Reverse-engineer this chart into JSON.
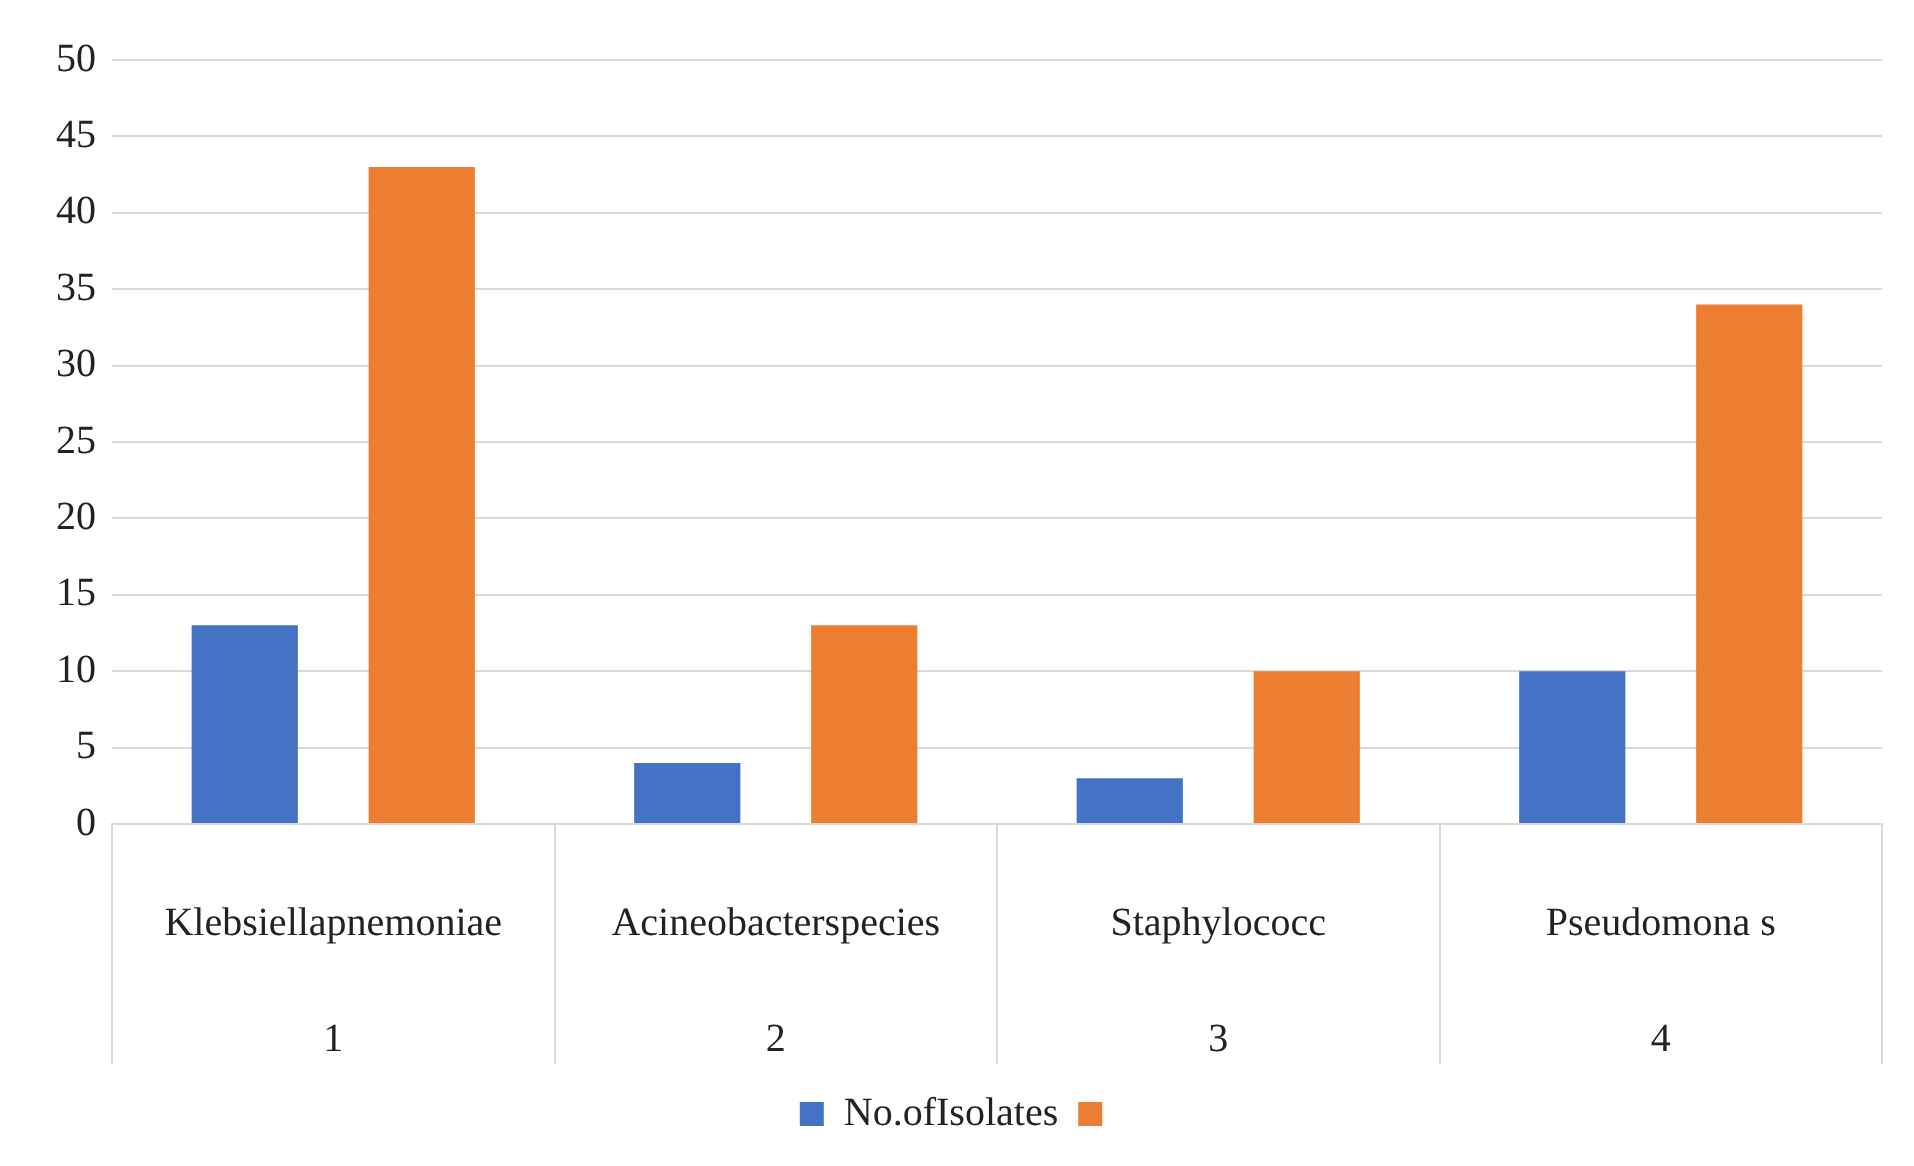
{
  "chart_data": {
    "type": "bar",
    "categories": [
      "Klebsiellapnemoniae",
      "Acineobacterspecies",
      "Staphylococc",
      "Pseudomona s"
    ],
    "series": [
      {
        "name": "No.ofIsolates",
        "color": "#4472c4",
        "values": [
          13,
          4,
          3,
          10
        ]
      },
      {
        "color": "#ed7d31",
        "values": [
          43,
          13,
          10,
          34
        ]
      }
    ],
    "ylim": [
      0,
      50
    ],
    "yticks": [
      0,
      5,
      10,
      15,
      20,
      25,
      30,
      35,
      40,
      45,
      50
    ],
    "grid": "y",
    "legend": "bottom",
    "annotations": [
      "1",
      "2",
      "3",
      "4"
    ]
  }
}
